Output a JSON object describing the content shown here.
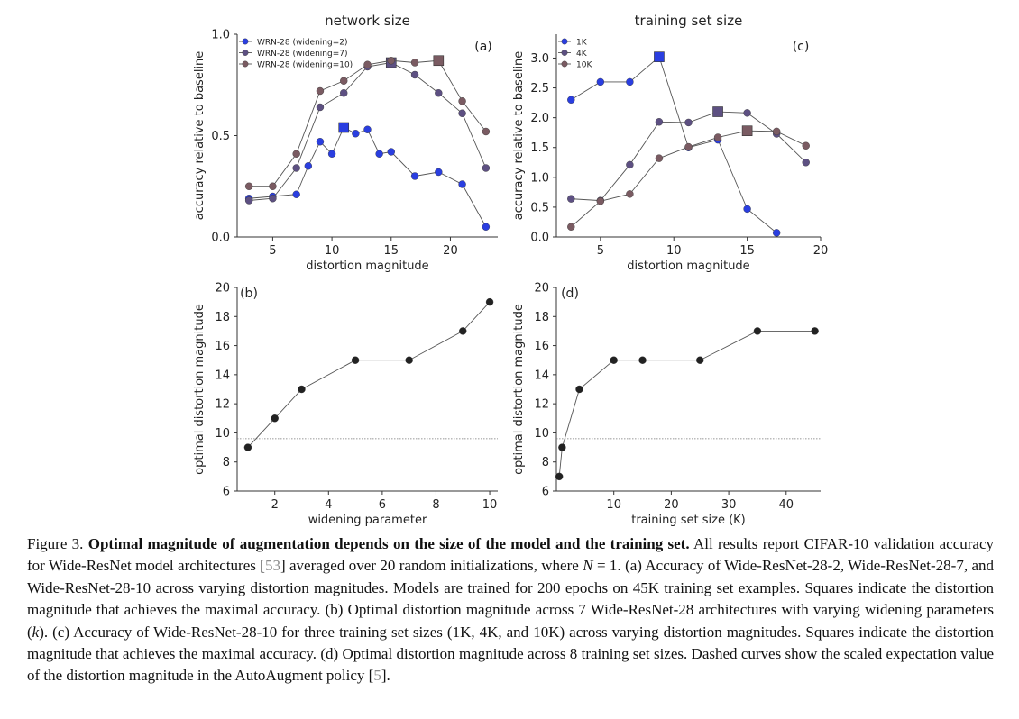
{
  "colors": {
    "wrn2": "#2a3ee0",
    "wrn7": "#5d5082",
    "wrn10": "#7a5b62",
    "bw": "#222222",
    "line": "#555555"
  },
  "chart_data": [
    {
      "type": "line",
      "panel_label": "(a)",
      "title": "network size",
      "xlabel": "distortion magnitude",
      "ylabel": "accuracy relative to baseline",
      "xlim": [
        2,
        24
      ],
      "ylim": [
        0,
        1.0
      ],
      "xticks": [
        "5",
        "10",
        "15",
        "20"
      ],
      "xtick_values": [
        5,
        10,
        15,
        20
      ],
      "yticks": [
        "0.0",
        "0.5",
        "1.0"
      ],
      "ytick_values": [
        0,
        0.5,
        1.0
      ],
      "legend_position": "top-left",
      "series": [
        {
          "name": "WRN-28 (widening=2)",
          "color": "#2a3ee0",
          "x": [
            3,
            5,
            7,
            8,
            9,
            10,
            11,
            12,
            13,
            14,
            15,
            17,
            19,
            21,
            23
          ],
          "y": [
            0.19,
            0.2,
            0.21,
            0.35,
            0.47,
            0.41,
            0.54,
            0.51,
            0.53,
            0.41,
            0.42,
            0.3,
            0.32,
            0.26,
            0.05
          ],
          "max_x": 11
        },
        {
          "name": "WRN-28 (widening=7)",
          "color": "#5d5082",
          "x": [
            3,
            5,
            7,
            9,
            11,
            13,
            15,
            17,
            19,
            21,
            23
          ],
          "y": [
            0.18,
            0.19,
            0.34,
            0.64,
            0.71,
            0.84,
            0.86,
            0.8,
            0.71,
            0.61,
            0.34
          ],
          "max_x": 15
        },
        {
          "name": "WRN-28 (widening=10)",
          "color": "#7a5b62",
          "x": [
            3,
            5,
            7,
            9,
            11,
            13,
            15,
            17,
            19,
            21,
            23
          ],
          "y": [
            0.25,
            0.25,
            0.41,
            0.72,
            0.77,
            0.85,
            0.87,
            0.86,
            0.87,
            0.67,
            0.52
          ],
          "max_x": 19
        }
      ]
    },
    {
      "type": "line",
      "panel_label": "(c)",
      "title": "training set size",
      "xlabel": "distortion magnitude",
      "ylabel": "accuracy relative to baseline",
      "xlim": [
        2,
        20
      ],
      "ylim": [
        0,
        3.4
      ],
      "xticks": [
        "5",
        "10",
        "15",
        "20"
      ],
      "xtick_values": [
        5,
        10,
        15,
        20
      ],
      "yticks": [
        "0.0",
        "0.5",
        "1.0",
        "1.5",
        "2.0",
        "2.5",
        "3.0"
      ],
      "ytick_values": [
        0,
        0.5,
        1,
        1.5,
        2,
        2.5,
        3
      ],
      "legend_position": "top-left",
      "series": [
        {
          "name": "1K",
          "color": "#2a3ee0",
          "x": [
            3,
            5,
            7,
            9,
            11,
            13,
            15,
            17
          ],
          "y": [
            2.3,
            2.6,
            2.6,
            3.02,
            1.5,
            1.63,
            0.47,
            0.07
          ],
          "max_x": 9
        },
        {
          "name": "4K",
          "color": "#5d5082",
          "x": [
            3,
            5,
            7,
            9,
            11,
            13,
            15,
            17,
            19
          ],
          "y": [
            0.64,
            0.61,
            1.21,
            1.93,
            1.92,
            2.1,
            2.08,
            1.73,
            1.25
          ],
          "max_x": 13
        },
        {
          "name": "10K",
          "color": "#7a5b62",
          "x": [
            3,
            5,
            7,
            9,
            11,
            13,
            15,
            17,
            19
          ],
          "y": [
            0.17,
            0.6,
            0.72,
            1.32,
            1.51,
            1.67,
            1.78,
            1.77,
            1.53
          ],
          "max_x": 15
        }
      ]
    },
    {
      "type": "line",
      "panel_label": "(b)",
      "xlabel": "widening parameter",
      "ylabel": "optimal distortion magnitude",
      "xlim": [
        0.6,
        10.3
      ],
      "ylim": [
        6,
        20
      ],
      "xticks": [
        "2",
        "4",
        "6",
        "8",
        "10"
      ],
      "xtick_values": [
        2,
        4,
        6,
        8,
        10
      ],
      "yticks": [
        "6",
        "8",
        "10",
        "12",
        "14",
        "16",
        "18",
        "20"
      ],
      "ytick_values": [
        6,
        8,
        10,
        12,
        14,
        16,
        18,
        20
      ],
      "dashed_reference_y": 9.6,
      "series": [
        {
          "x": [
            1,
            2,
            3,
            5,
            7,
            9,
            10
          ],
          "y": [
            9,
            11,
            13,
            15,
            15,
            17,
            19
          ]
        }
      ]
    },
    {
      "type": "line",
      "panel_label": "(d)",
      "xlabel": "training set size (K)",
      "ylabel": "optimal distortion magnitude",
      "xlim": [
        0,
        46
      ],
      "ylim": [
        6,
        20
      ],
      "xticks": [
        "10",
        "20",
        "30",
        "40"
      ],
      "xtick_values": [
        10,
        20,
        30,
        40
      ],
      "yticks": [
        "6",
        "8",
        "10",
        "12",
        "14",
        "16",
        "18",
        "20"
      ],
      "ytick_values": [
        6,
        8,
        10,
        12,
        14,
        16,
        18,
        20
      ],
      "dashed_reference_y": 9.6,
      "series": [
        {
          "x": [
            0.5,
            1,
            4,
            10,
            15,
            25,
            35,
            45
          ],
          "y": [
            7,
            9,
            13,
            15,
            15,
            15,
            17,
            17
          ]
        }
      ]
    }
  ],
  "caption": {
    "fig_label": "Figure 3.",
    "bold_text": "Optimal magnitude of augmentation depends on the size of the model and the training set.",
    "text_1": "All results report CIFAR-10 validation accuracy for Wide-ResNet model architectures [",
    "cite_1": "53",
    "text_2": "] averaged over 20 random initializations, where",
    "math_var": "N",
    "text_3": "= 1. (a) Accuracy of Wide-ResNet-28-2, Wide-ResNet-28-7, and Wide-ResNet-28-10 across varying distortion magnitudes. Models are trained for 200 epochs on 45K training set examples. Squares indicate the distortion magnitude that achieves the maximal accuracy. (b) Optimal distortion magnitude across 7 Wide-ResNet-28 architectures with varying widening parameters (",
    "math_k": "k",
    "text_4": "). (c) Accuracy of Wide-ResNet-28-10 for three training set sizes (1K, 4K, and 10K) across varying distortion magnitudes. Squares indicate the distortion magnitude that achieves the maximal accuracy. (d) Optimal distortion magnitude across 8 training set sizes. Dashed curves show the scaled expectation value of the distortion magnitude in the AutoAugment policy [",
    "cite_2": "5",
    "text_5": "]."
  }
}
